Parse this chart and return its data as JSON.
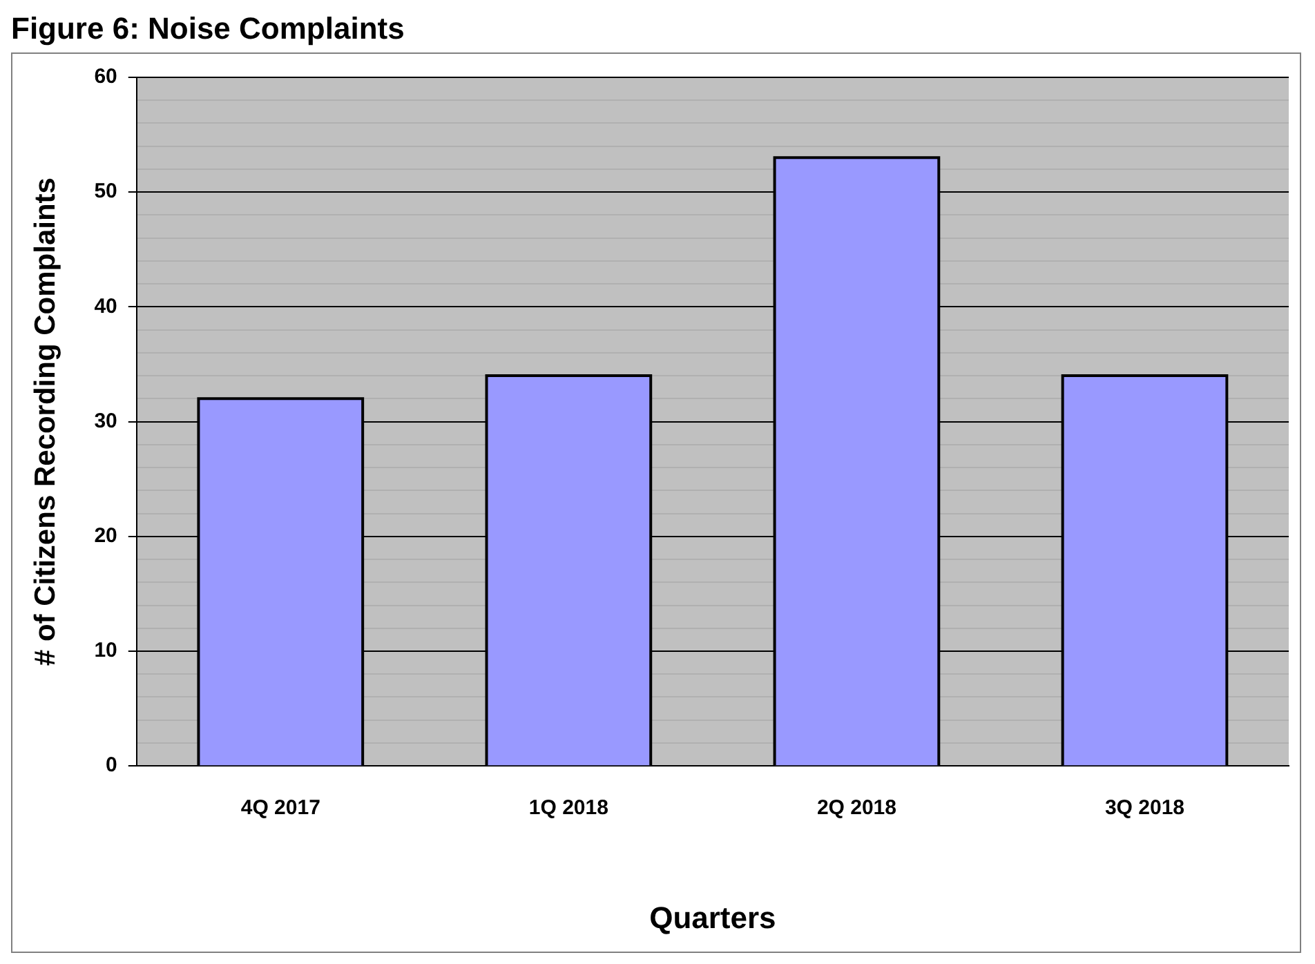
{
  "chart_data": {
    "type": "bar",
    "title": "Figure 6: Noise Complaints",
    "xlabel": "Quarters",
    "ylabel": "# of Citizens Recording Complaints",
    "categories": [
      "4Q 2017",
      "1Q 2018",
      "2Q 2018",
      "3Q 2018"
    ],
    "values": [
      32,
      34,
      53,
      34
    ],
    "color": "#9999ff",
    "ylim": [
      0,
      60
    ],
    "yticks": [
      0,
      {
        "value": 2,
        "label": null
      },
      {
        "value": 4,
        "label": null
      },
      {
        "value": 6,
        "label": null
      },
      {
        "value": 8,
        "label": null
      },
      10,
      {
        "value": 12,
        "label": null
      },
      {
        "value": 14,
        "label": null
      },
      {
        "value": 16,
        "label": null
      },
      {
        "value": 18,
        "label": null
      },
      20,
      {
        "value": 22,
        "label": null
      },
      {
        "value": 24,
        "label": null
      },
      {
        "value": 26,
        "label": null
      },
      {
        "value": 28,
        "label": null
      },
      30,
      {
        "value": 32,
        "label": null
      },
      {
        "value": 34,
        "label": null
      },
      {
        "value": 36,
        "label": null
      },
      {
        "value": 38,
        "label": null
      },
      40,
      {
        "value": 42,
        "label": null
      },
      {
        "value": 44,
        "label": null
      },
      {
        "value": 46,
        "label": null
      },
      {
        "value": 48,
        "label": null
      },
      50,
      {
        "value": 52,
        "label": null
      },
      {
        "value": 54,
        "label": null
      },
      {
        "value": 56,
        "label": null
      },
      {
        "value": 58,
        "label": null
      },
      60
    ],
    "grid": "y",
    "legend": false
  }
}
